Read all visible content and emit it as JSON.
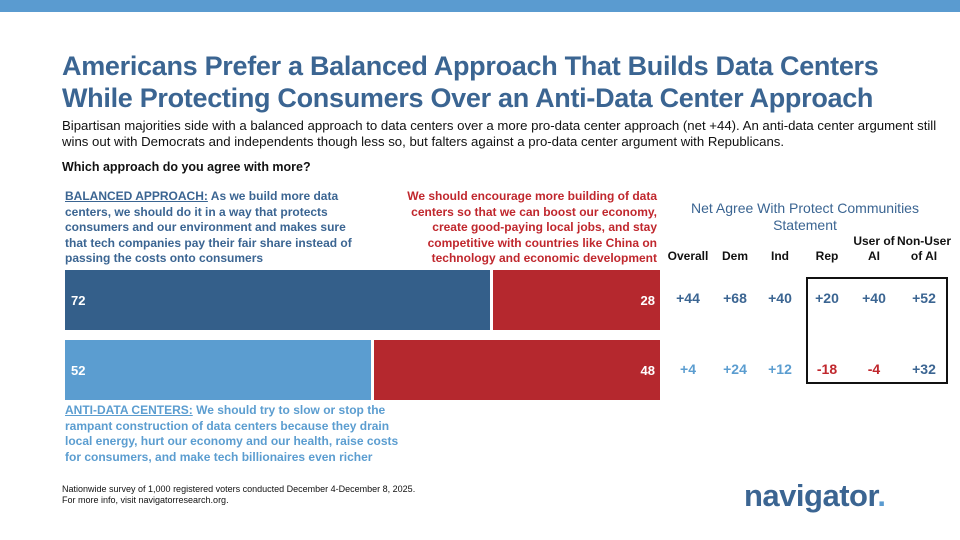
{
  "title": "Americans Prefer a Balanced Approach That Builds Data Centers While Protecting Consumers Over an Anti-Data Center Approach",
  "subtitle": "Bipartisan majorities side with a balanced approach to data centers over a more pro-data center approach (net +44). An anti-data center argument still wins out with Democrats and independents though less so, but falters against a pro-data center argument with Republicans.",
  "question": "Which approach do you agree with more?",
  "balanced": {
    "label": "BALANCED APPROACH:",
    "text": " As we build more data centers, we should do it in a way that protects consumers and our environment and makes sure that tech companies pay their fair share instead of passing the costs onto consumers"
  },
  "pro": {
    "text": "We should encourage more building of data centers so that we can boost our economy, create good-paying local jobs, and stay competitive with countries like China on technology and economic development"
  },
  "anti": {
    "label": "ANTI-DATA CENTERS:",
    "text": " We should try to slow or stop the rampant construction of data centers because they drain local energy, hurt our economy and our health, raise costs for consumers, and make tech billionaires even richer"
  },
  "chart_data": {
    "type": "bar",
    "stacked": true,
    "orientation": "horizontal",
    "categories": [
      "BALANCED APPROACH",
      "ANTI-DATA CENTERS"
    ],
    "series": [
      {
        "values": [
          72,
          52
        ],
        "colors": [
          "#345f8a",
          "#5b9dd0"
        ]
      },
      {
        "values": [
          28,
          48
        ],
        "color": "#b5282e"
      }
    ],
    "labels": [
      [
        "72",
        "28"
      ],
      [
        "52",
        "48"
      ]
    ]
  },
  "net": {
    "header": "Net Agree With Protect Communities Statement",
    "columns": [
      "Overall",
      "Dem",
      "Ind",
      "Rep",
      "User of AI",
      "Non-User of AI"
    ],
    "rows": [
      [
        "+44",
        "+68",
        "+40",
        "+20",
        "+40",
        "+52"
      ],
      [
        "+4",
        "+24",
        "+12",
        "-18",
        "-4",
        "+32"
      ]
    ]
  },
  "colors": {
    "dark_blue": "#345f8a",
    "light_blue": "#5b9dd0",
    "red": "#b5282e"
  },
  "footnote": [
    "Nationwide survey of 1,000 registered voters conducted December 4-December 8, 2025.",
    "For more info, visit navigatorresearch.org."
  ],
  "logo": "navigator"
}
